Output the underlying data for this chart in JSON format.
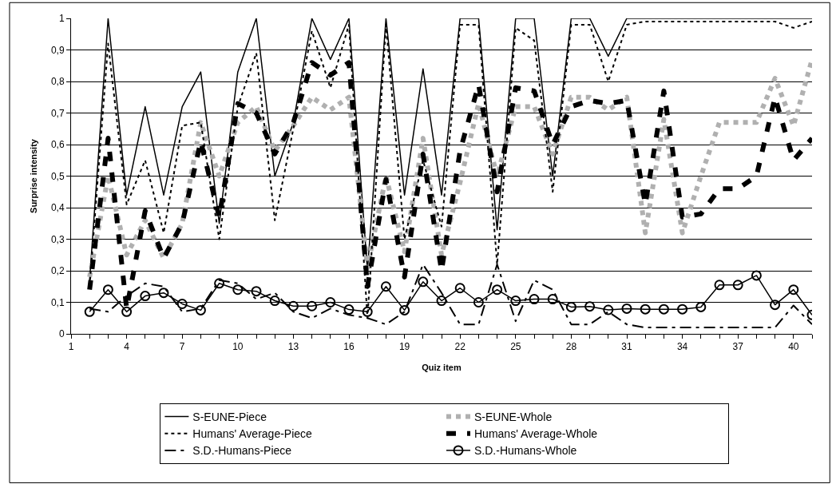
{
  "chart_data": {
    "type": "line",
    "xlabel": "Quiz item",
    "ylabel": "Surprise intensity",
    "x": [
      2,
      3,
      4,
      5,
      6,
      7,
      8,
      9,
      10,
      11,
      12,
      13,
      14,
      15,
      16,
      17,
      18,
      19,
      20,
      21,
      22,
      23,
      24,
      25,
      26,
      27,
      28,
      29,
      30,
      31,
      32,
      33,
      34,
      35,
      36,
      37,
      38,
      39,
      40,
      41
    ],
    "xlim": [
      1,
      41
    ],
    "xticks": [
      1,
      {
        "value": 2,
        "label": null
      },
      {
        "value": 3,
        "label": null
      },
      4,
      {
        "value": 5,
        "label": null
      },
      {
        "value": 6,
        "label": null
      },
      7,
      {
        "value": 8,
        "label": null
      },
      {
        "value": 9,
        "label": null
      },
      10,
      {
        "value": 11,
        "label": null
      },
      {
        "value": 12,
        "label": null
      },
      13,
      {
        "value": 14,
        "label": null
      },
      {
        "value": 15,
        "label": null
      },
      16,
      {
        "value": 17,
        "label": null
      },
      {
        "value": 18,
        "label": null
      },
      19,
      {
        "value": 20,
        "label": null
      },
      {
        "value": 21,
        "label": null
      },
      22,
      {
        "value": 23,
        "label": null
      },
      {
        "value": 24,
        "label": null
      },
      25,
      {
        "value": 26,
        "label": null
      },
      {
        "value": 27,
        "label": null
      },
      28,
      {
        "value": 29,
        "label": null
      },
      {
        "value": 30,
        "label": null
      },
      31,
      {
        "value": 32,
        "label": null
      },
      {
        "value": 33,
        "label": null
      },
      34,
      {
        "value": 35,
        "label": null
      },
      {
        "value": 36,
        "label": null
      },
      37,
      {
        "value": 38,
        "label": null
      },
      {
        "value": 39,
        "label": null
      },
      40,
      {
        "value": 41,
        "label": null
      }
    ],
    "ylim": [
      0,
      1
    ],
    "yticks": [
      0,
      {
        "value": 0.1,
        "label": "0,1"
      },
      {
        "value": 0.2,
        "label": "0,2"
      },
      {
        "value": 0.3,
        "label": "0,3"
      },
      {
        "value": 0.4,
        "label": "0,4"
      },
      {
        "value": 0.5,
        "label": "0,5"
      },
      {
        "value": 0.6,
        "label": "0,6"
      },
      {
        "value": 0.7,
        "label": "0,7"
      },
      {
        "value": 0.8,
        "label": "0,8"
      },
      {
        "value": 0.9,
        "label": "0,9"
      },
      1
    ],
    "grid": "y",
    "legend": "bottom",
    "series": [
      {
        "name": "S-EUNE-Piece",
        "color": "#000000",
        "line_style": "solid",
        "marker": "none",
        "values": [
          0.17,
          1.0,
          0.44,
          0.72,
          0.44,
          0.72,
          0.83,
          0.35,
          0.83,
          1.0,
          0.5,
          0.67,
          1.0,
          0.87,
          1.0,
          0.2,
          1.0,
          0.44,
          0.84,
          0.44,
          1.0,
          1.0,
          0.33,
          1.0,
          1.0,
          0.5,
          1.0,
          1.0,
          0.88,
          1.0,
          1.0,
          1.0,
          1.0,
          1.0,
          1.0,
          1.0,
          1.0,
          1.0,
          1.0,
          1.0
        ]
      },
      {
        "name": "S-EUNE-Whole",
        "color": "#b0b0b0",
        "line_style": "dotted",
        "marker": "none",
        "values": [
          0.18,
          0.5,
          0.25,
          0.36,
          0.24,
          0.35,
          0.67,
          0.5,
          0.67,
          0.72,
          0.58,
          0.66,
          0.75,
          0.71,
          0.75,
          0.21,
          0.5,
          0.26,
          0.62,
          0.25,
          0.48,
          0.73,
          0.5,
          0.72,
          0.72,
          0.57,
          0.75,
          0.75,
          0.71,
          0.75,
          0.32,
          0.68,
          0.32,
          0.5,
          0.67,
          0.67,
          0.67,
          0.81,
          0.66,
          0.87
        ]
      },
      {
        "name": "Humans' Average-Piece",
        "color": "#000000",
        "line_style": "dashed",
        "marker": "none",
        "values": [
          0.15,
          0.92,
          0.41,
          0.55,
          0.32,
          0.66,
          0.67,
          0.3,
          0.72,
          0.89,
          0.36,
          0.65,
          0.96,
          0.78,
          0.98,
          0.05,
          0.98,
          0.3,
          0.55,
          0.34,
          0.98,
          0.98,
          0.22,
          0.97,
          0.93,
          0.45,
          0.98,
          0.98,
          0.8,
          0.98,
          0.99,
          0.99,
          0.99,
          0.99,
          0.99,
          0.99,
          0.99,
          0.99,
          0.97,
          0.99
        ]
      },
      {
        "name": "Humans' Average-Whole",
        "color": "#000000",
        "line_style": "dashed",
        "marker": "none",
        "values": [
          0.14,
          0.62,
          0.08,
          0.39,
          0.24,
          0.35,
          0.61,
          0.37,
          0.73,
          0.7,
          0.57,
          0.67,
          0.86,
          0.82,
          0.86,
          0.15,
          0.49,
          0.18,
          0.57,
          0.2,
          0.58,
          0.79,
          0.45,
          0.78,
          0.77,
          0.6,
          0.72,
          0.74,
          0.73,
          0.74,
          0.41,
          0.77,
          0.37,
          0.38,
          0.46,
          0.46,
          0.5,
          0.75,
          0.55,
          0.62
        ]
      },
      {
        "name": "S.D.-Humans-Piece",
        "color": "#000000",
        "line_style": "dashed",
        "marker": "none",
        "values": [
          0.08,
          0.07,
          0.12,
          0.16,
          0.15,
          0.07,
          0.08,
          0.17,
          0.16,
          0.11,
          0.13,
          0.07,
          0.05,
          0.08,
          0.06,
          0.05,
          0.03,
          0.07,
          0.22,
          0.13,
          0.03,
          0.03,
          0.22,
          0.04,
          0.17,
          0.14,
          0.03,
          0.03,
          0.07,
          0.03,
          0.02,
          0.02,
          0.02,
          0.02,
          0.02,
          0.02,
          0.02,
          0.02,
          0.09,
          0.03
        ]
      },
      {
        "name": "S.D.-Humans-Whole",
        "color": "#000000",
        "line_style": "solid",
        "marker": "circle",
        "values": [
          0.07,
          0.14,
          0.07,
          0.12,
          0.13,
          0.095,
          0.075,
          0.16,
          0.14,
          0.135,
          0.105,
          0.088,
          0.088,
          0.1,
          0.077,
          0.07,
          0.15,
          0.075,
          0.165,
          0.105,
          0.145,
          0.1,
          0.14,
          0.105,
          0.11,
          0.11,
          0.085,
          0.087,
          0.076,
          0.08,
          0.078,
          0.078,
          0.078,
          0.085,
          0.155,
          0.155,
          0.185,
          0.092,
          0.14,
          0.06
        ]
      }
    ]
  }
}
